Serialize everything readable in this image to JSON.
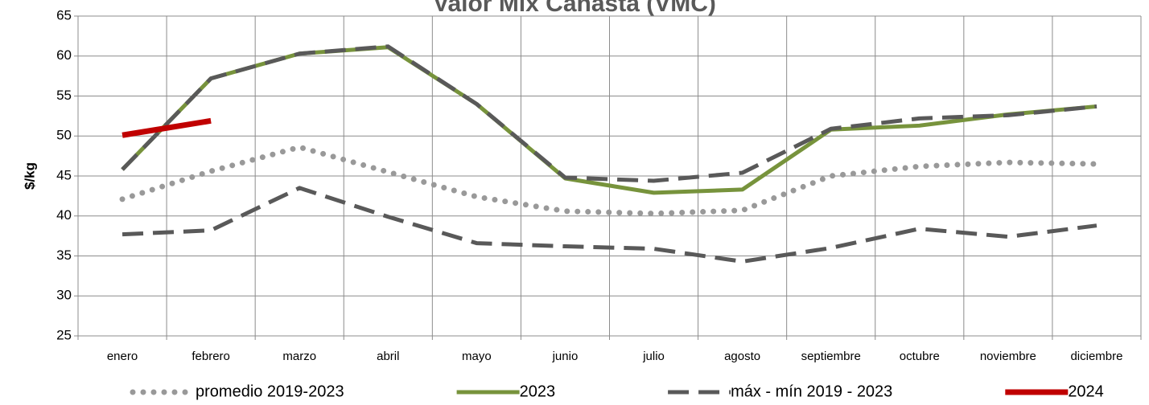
{
  "chart_data": {
    "type": "line",
    "title": "Valor Mix Canasta (VMC)",
    "y_label": "$/kg",
    "categories": [
      "enero",
      "febrero",
      "marzo",
      "abril",
      "mayo",
      "junio",
      "julio",
      "agosto",
      "septiembre",
      "octubre",
      "noviembre",
      "diciembre"
    ],
    "ylim": [
      25,
      65
    ],
    "yticks": [
      25,
      30,
      35,
      40,
      45,
      50,
      55,
      60,
      65
    ],
    "grid": true,
    "legend": "bottom",
    "series": [
      {
        "name": "promedio 2019-2023",
        "color": "#999999",
        "style": "dotted",
        "values": [
          42.1,
          45.6,
          48.6,
          45.5,
          42.4,
          40.6,
          40.3,
          40.7,
          45.0,
          46.2,
          46.7,
          46.5
        ]
      },
      {
        "name": "2023",
        "color": "#77933c",
        "style": "solid",
        "values": [
          45.8,
          57.2,
          60.3,
          61.1,
          54.0,
          44.7,
          42.9,
          43.3,
          50.8,
          51.3,
          52.7,
          53.7
        ]
      },
      {
        "name": "máx  -  mín 2019 - 2023",
        "color": "#595959",
        "style": "dashed",
        "values": [
          45.8,
          57.2,
          60.3,
          61.2,
          54.0,
          44.8,
          44.4,
          45.4,
          50.9,
          52.2,
          52.6,
          53.7
        ]
      },
      {
        "color": "#595959",
        "style": "dashed",
        "values": [
          37.7,
          38.2,
          43.5,
          39.9,
          36.6,
          36.2,
          35.9,
          34.3,
          36.0,
          38.4,
          37.4,
          38.8
        ]
      },
      {
        "name": "2024",
        "color": "#c00000",
        "style": "solid",
        "values": [
          50.1,
          51.9,
          null,
          null,
          null,
          null,
          null,
          null,
          null,
          null,
          null,
          null
        ]
      }
    ]
  }
}
